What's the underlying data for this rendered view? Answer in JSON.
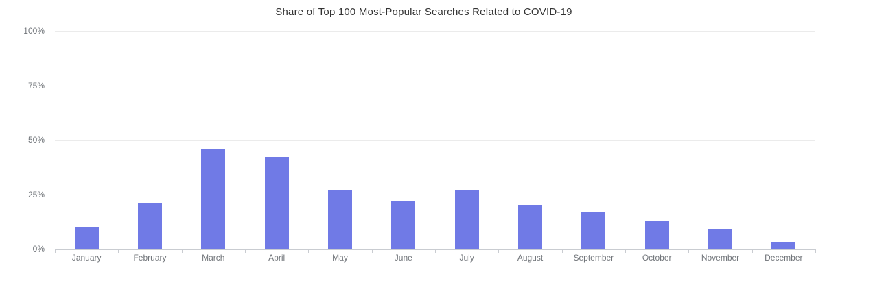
{
  "title": "Share of Top 100 Most-Popular Searches Related to COVID-19",
  "chart_data": {
    "type": "bar",
    "title": "Share of Top 100 Most-Popular Searches Related to COVID-19",
    "categories": [
      "January",
      "February",
      "March",
      "April",
      "May",
      "June",
      "July",
      "August",
      "September",
      "October",
      "November",
      "December"
    ],
    "values": [
      10,
      21,
      46,
      42,
      27,
      22,
      27,
      20,
      17,
      13,
      9,
      3
    ],
    "unit": "%",
    "xlabel": "",
    "ylabel": "",
    "ylim": [
      0,
      100
    ],
    "ytick_interval": 25,
    "ytick_labels": [
      "0%",
      "25%",
      "50%",
      "75%",
      "100%"
    ],
    "grid": true,
    "legend": false
  },
  "colors": {
    "bar": "#707ae6",
    "gridline": "#ebebeb",
    "axis": "#c9ccd1",
    "title_text": "#333333",
    "label_text": "#71757a",
    "background": "#ffffff"
  }
}
